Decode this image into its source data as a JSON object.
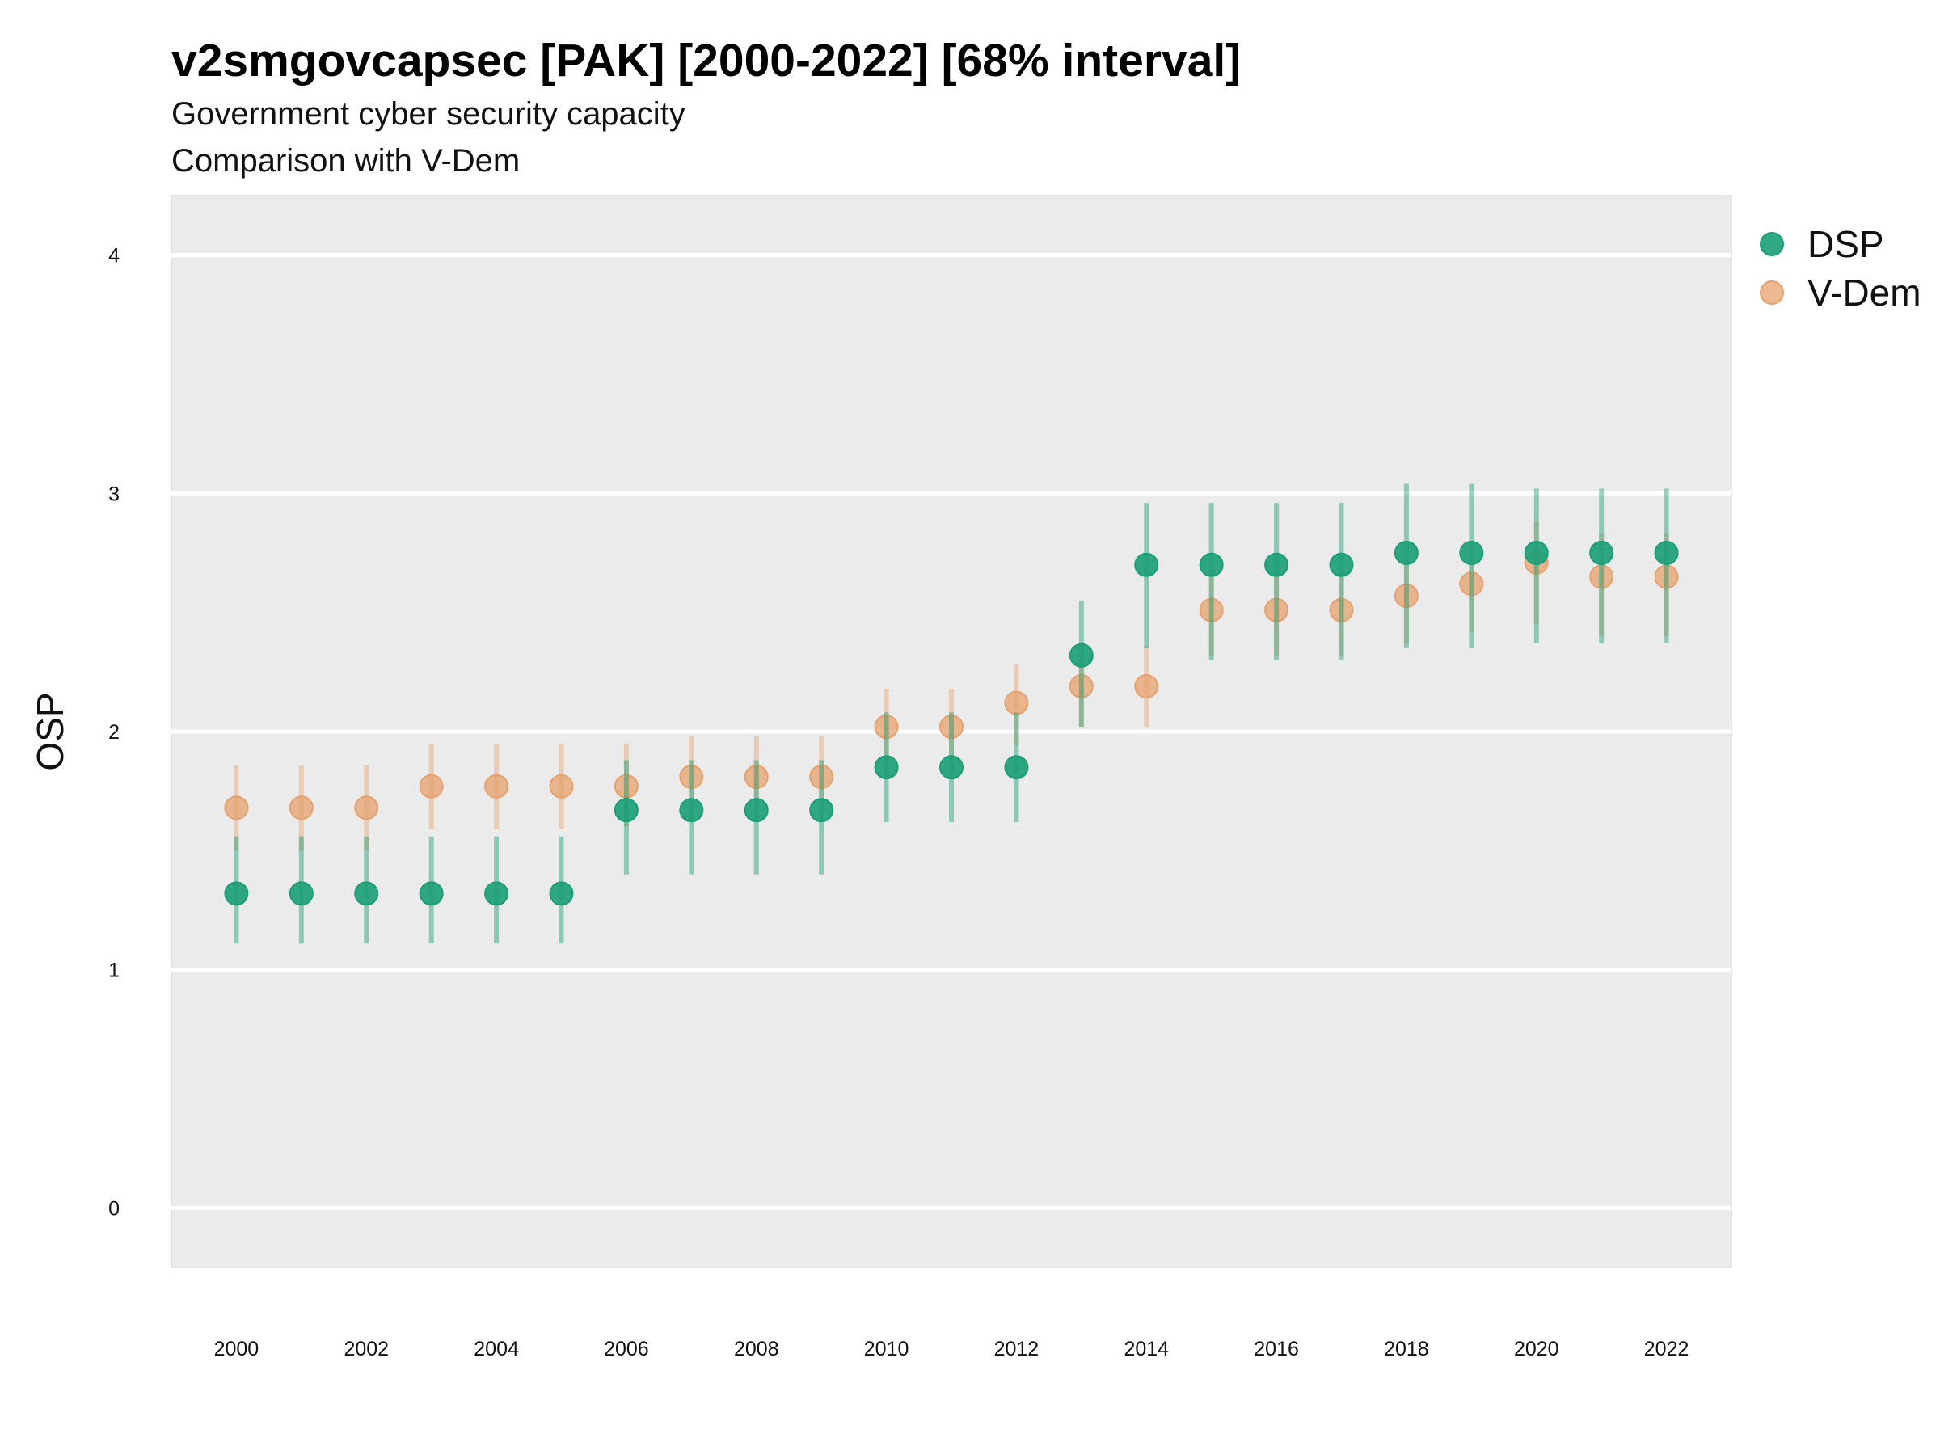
{
  "chart_data": {
    "type": "scatter",
    "title": "v2smgovcapsec [PAK] [2000-2022] [68% interval]",
    "subtitle": "Government cyber security capacity",
    "subtitle2": "Comparison with V-Dem",
    "xlabel": "",
    "ylabel": "OSP",
    "xlim": [
      1999.0,
      2023.0
    ],
    "ylim": [
      -0.25,
      4.25
    ],
    "x_ticks": [
      "2000",
      "2002",
      "2004",
      "2006",
      "2008",
      "2010",
      "2012",
      "2014",
      "2016",
      "2018",
      "2020",
      "2022"
    ],
    "y_ticks": [
      "0",
      "1",
      "2",
      "3",
      "4"
    ],
    "grid": true,
    "legend_position": "right",
    "x": [
      2000,
      2001,
      2002,
      2003,
      2004,
      2005,
      2006,
      2007,
      2008,
      2009,
      2010,
      2011,
      2012,
      2013,
      2014,
      2015,
      2016,
      2017,
      2018,
      2019,
      2020,
      2021,
      2022
    ],
    "series": [
      {
        "name": "V-Dem",
        "color": "#E6A26E",
        "values": [
          1.68,
          1.68,
          1.68,
          1.77,
          1.77,
          1.77,
          1.77,
          1.81,
          1.81,
          1.81,
          2.02,
          2.02,
          2.12,
          2.19,
          2.19,
          2.51,
          2.51,
          2.51,
          2.57,
          2.62,
          2.71,
          2.65,
          2.65
        ],
        "lower": [
          1.5,
          1.5,
          1.5,
          1.59,
          1.59,
          1.59,
          1.6,
          1.62,
          1.62,
          1.62,
          1.84,
          1.84,
          1.94,
          2.02,
          2.02,
          2.32,
          2.32,
          2.32,
          2.37,
          2.42,
          2.45,
          2.4,
          2.4
        ],
        "upper": [
          1.86,
          1.86,
          1.86,
          1.95,
          1.95,
          1.95,
          1.95,
          1.98,
          1.98,
          1.98,
          2.18,
          2.18,
          2.28,
          2.36,
          2.36,
          2.68,
          2.68,
          2.68,
          2.74,
          2.8,
          2.88,
          2.83,
          2.83
        ]
      },
      {
        "name": "DSP",
        "color": "#1B9E77",
        "values": [
          1.32,
          1.32,
          1.32,
          1.32,
          1.32,
          1.32,
          1.67,
          1.67,
          1.67,
          1.67,
          1.85,
          1.85,
          1.85,
          2.32,
          2.7,
          2.7,
          2.7,
          2.7,
          2.75,
          2.75,
          2.75,
          2.75,
          2.75
        ],
        "lower": [
          1.11,
          1.11,
          1.11,
          1.11,
          1.11,
          1.11,
          1.4,
          1.4,
          1.4,
          1.4,
          1.62,
          1.62,
          1.62,
          2.02,
          2.35,
          2.3,
          2.3,
          2.3,
          2.35,
          2.35,
          2.37,
          2.37,
          2.37
        ],
        "upper": [
          1.56,
          1.56,
          1.56,
          1.56,
          1.56,
          1.56,
          1.88,
          1.88,
          1.88,
          1.88,
          2.08,
          2.08,
          2.08,
          2.55,
          2.96,
          2.96,
          2.96,
          2.96,
          3.04,
          3.04,
          3.02,
          3.02,
          3.02
        ]
      }
    ]
  }
}
